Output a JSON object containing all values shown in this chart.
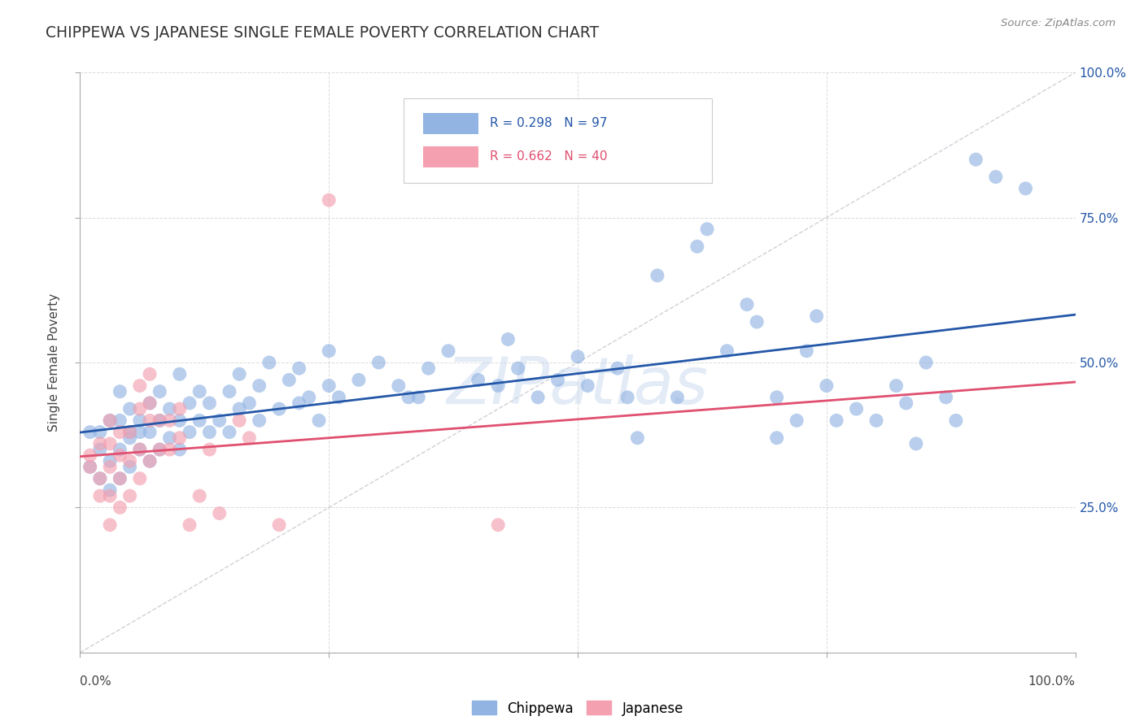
{
  "title": "CHIPPEWA VS JAPANESE SINGLE FEMALE POVERTY CORRELATION CHART",
  "source": "Source: ZipAtlas.com",
  "ylabel": "Single Female Poverty",
  "chippewa_R": "R = 0.298",
  "chippewa_N": "N = 97",
  "japanese_R": "R = 0.662",
  "japanese_N": "N = 40",
  "chippewa_color": "#92b4e3",
  "japanese_color": "#f4a0b0",
  "chippewa_line_color": "#2457a8",
  "japanese_line_color": "#e05070",
  "diagonal_color": "#d0d0d8",
  "watermark": "ZIPatlas",
  "chippewa_points": [
    [
      0.01,
      0.38
    ],
    [
      0.01,
      0.32
    ],
    [
      0.02,
      0.35
    ],
    [
      0.02,
      0.3
    ],
    [
      0.02,
      0.38
    ],
    [
      0.03,
      0.28
    ],
    [
      0.03,
      0.33
    ],
    [
      0.03,
      0.4
    ],
    [
      0.04,
      0.3
    ],
    [
      0.04,
      0.35
    ],
    [
      0.04,
      0.4
    ],
    [
      0.04,
      0.45
    ],
    [
      0.05,
      0.32
    ],
    [
      0.05,
      0.37
    ],
    [
      0.05,
      0.42
    ],
    [
      0.05,
      0.38
    ],
    [
      0.06,
      0.35
    ],
    [
      0.06,
      0.4
    ],
    [
      0.06,
      0.38
    ],
    [
      0.07,
      0.33
    ],
    [
      0.07,
      0.38
    ],
    [
      0.07,
      0.43
    ],
    [
      0.08,
      0.35
    ],
    [
      0.08,
      0.4
    ],
    [
      0.08,
      0.45
    ],
    [
      0.09,
      0.37
    ],
    [
      0.09,
      0.42
    ],
    [
      0.1,
      0.35
    ],
    [
      0.1,
      0.4
    ],
    [
      0.1,
      0.48
    ],
    [
      0.11,
      0.38
    ],
    [
      0.11,
      0.43
    ],
    [
      0.12,
      0.4
    ],
    [
      0.12,
      0.45
    ],
    [
      0.13,
      0.38
    ],
    [
      0.13,
      0.43
    ],
    [
      0.14,
      0.4
    ],
    [
      0.15,
      0.38
    ],
    [
      0.15,
      0.45
    ],
    [
      0.16,
      0.42
    ],
    [
      0.16,
      0.48
    ],
    [
      0.17,
      0.43
    ],
    [
      0.18,
      0.4
    ],
    [
      0.18,
      0.46
    ],
    [
      0.19,
      0.5
    ],
    [
      0.2,
      0.42
    ],
    [
      0.21,
      0.47
    ],
    [
      0.22,
      0.43
    ],
    [
      0.22,
      0.49
    ],
    [
      0.23,
      0.44
    ],
    [
      0.24,
      0.4
    ],
    [
      0.25,
      0.46
    ],
    [
      0.25,
      0.52
    ],
    [
      0.26,
      0.44
    ],
    [
      0.28,
      0.47
    ],
    [
      0.3,
      0.5
    ],
    [
      0.32,
      0.46
    ],
    [
      0.33,
      0.44
    ],
    [
      0.34,
      0.44
    ],
    [
      0.35,
      0.49
    ],
    [
      0.37,
      0.52
    ],
    [
      0.4,
      0.47
    ],
    [
      0.42,
      0.46
    ],
    [
      0.43,
      0.54
    ],
    [
      0.44,
      0.49
    ],
    [
      0.46,
      0.44
    ],
    [
      0.48,
      0.47
    ],
    [
      0.5,
      0.51
    ],
    [
      0.51,
      0.46
    ],
    [
      0.54,
      0.49
    ],
    [
      0.55,
      0.44
    ],
    [
      0.56,
      0.37
    ],
    [
      0.58,
      0.65
    ],
    [
      0.6,
      0.44
    ],
    [
      0.62,
      0.7
    ],
    [
      0.63,
      0.73
    ],
    [
      0.65,
      0.52
    ],
    [
      0.67,
      0.6
    ],
    [
      0.68,
      0.57
    ],
    [
      0.7,
      0.37
    ],
    [
      0.7,
      0.44
    ],
    [
      0.72,
      0.4
    ],
    [
      0.73,
      0.52
    ],
    [
      0.74,
      0.58
    ],
    [
      0.75,
      0.46
    ],
    [
      0.76,
      0.4
    ],
    [
      0.78,
      0.42
    ],
    [
      0.8,
      0.4
    ],
    [
      0.82,
      0.46
    ],
    [
      0.83,
      0.43
    ],
    [
      0.84,
      0.36
    ],
    [
      0.85,
      0.5
    ],
    [
      0.87,
      0.44
    ],
    [
      0.88,
      0.4
    ],
    [
      0.9,
      0.85
    ],
    [
      0.92,
      0.82
    ],
    [
      0.95,
      0.8
    ]
  ],
  "japanese_points": [
    [
      0.01,
      0.32
    ],
    [
      0.01,
      0.34
    ],
    [
      0.02,
      0.27
    ],
    [
      0.02,
      0.3
    ],
    [
      0.02,
      0.36
    ],
    [
      0.03,
      0.22
    ],
    [
      0.03,
      0.27
    ],
    [
      0.03,
      0.32
    ],
    [
      0.03,
      0.36
    ],
    [
      0.03,
      0.4
    ],
    [
      0.04,
      0.25
    ],
    [
      0.04,
      0.3
    ],
    [
      0.04,
      0.34
    ],
    [
      0.04,
      0.38
    ],
    [
      0.05,
      0.27
    ],
    [
      0.05,
      0.33
    ],
    [
      0.05,
      0.38
    ],
    [
      0.06,
      0.3
    ],
    [
      0.06,
      0.35
    ],
    [
      0.06,
      0.42
    ],
    [
      0.06,
      0.46
    ],
    [
      0.07,
      0.33
    ],
    [
      0.07,
      0.4
    ],
    [
      0.07,
      0.43
    ],
    [
      0.07,
      0.48
    ],
    [
      0.08,
      0.35
    ],
    [
      0.08,
      0.4
    ],
    [
      0.09,
      0.35
    ],
    [
      0.09,
      0.4
    ],
    [
      0.1,
      0.37
    ],
    [
      0.1,
      0.42
    ],
    [
      0.11,
      0.22
    ],
    [
      0.12,
      0.27
    ],
    [
      0.13,
      0.35
    ],
    [
      0.14,
      0.24
    ],
    [
      0.16,
      0.4
    ],
    [
      0.17,
      0.37
    ],
    [
      0.2,
      0.22
    ],
    [
      0.25,
      0.78
    ],
    [
      0.42,
      0.22
    ]
  ],
  "xlim": [
    0.0,
    1.0
  ],
  "ylim": [
    0.0,
    1.0
  ],
  "ytick_positions": [
    0.25,
    0.5,
    0.75,
    1.0
  ],
  "ytick_labels": [
    "25.0%",
    "50.0%",
    "75.0%",
    "100.0%"
  ],
  "background_color": "#ffffff",
  "grid_color": "#cccccc",
  "tick_color": "#2457a8"
}
